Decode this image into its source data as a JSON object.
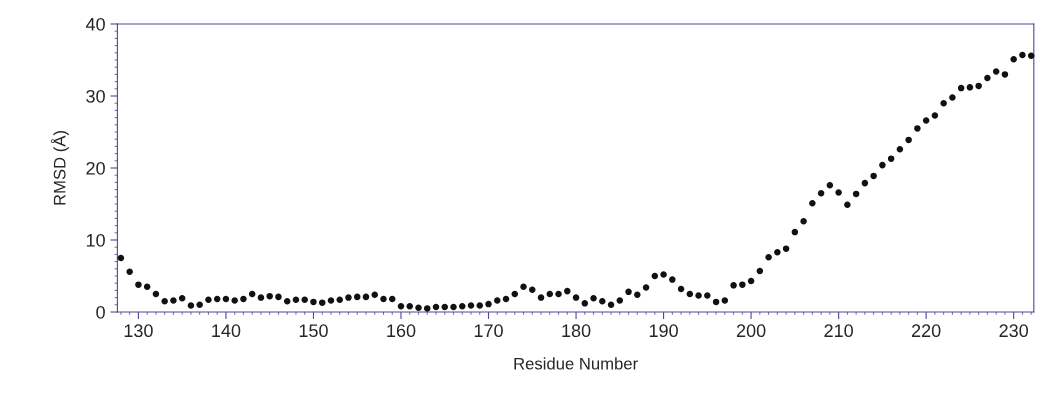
{
  "chart_data": {
    "type": "scatter",
    "xlabel": "Residue Number",
    "ylabel": "RMSD (Å)",
    "x": [
      128,
      129,
      130,
      131,
      132,
      133,
      134,
      135,
      136,
      137,
      138,
      139,
      140,
      141,
      142,
      143,
      144,
      145,
      146,
      147,
      148,
      149,
      150,
      151,
      152,
      153,
      154,
      155,
      156,
      157,
      158,
      159,
      160,
      161,
      162,
      163,
      164,
      165,
      166,
      167,
      168,
      169,
      170,
      171,
      172,
      173,
      174,
      175,
      176,
      177,
      178,
      179,
      180,
      181,
      182,
      183,
      184,
      185,
      186,
      187,
      188,
      189,
      190,
      191,
      192,
      193,
      194,
      195,
      196,
      197,
      198,
      199,
      200,
      201,
      202,
      203,
      204,
      205,
      206,
      207,
      208,
      209,
      210,
      211,
      212,
      213,
      214,
      215,
      216,
      217,
      218,
      219,
      220,
      221,
      222,
      223,
      224,
      225,
      226,
      227,
      228,
      229,
      230,
      231,
      232
    ],
    "series": [
      {
        "color": "#111111",
        "values": [
          7.5,
          5.6,
          3.8,
          3.5,
          2.5,
          1.5,
          1.6,
          1.9,
          0.9,
          1.0,
          1.7,
          1.8,
          1.8,
          1.6,
          1.8,
          2.5,
          2.0,
          2.2,
          2.1,
          1.5,
          1.7,
          1.7,
          1.4,
          1.3,
          1.6,
          1.7,
          2.0,
          2.1,
          2.1,
          2.4,
          1.8,
          1.8,
          0.8,
          0.8,
          0.6,
          0.5,
          0.7,
          0.7,
          0.7,
          0.8,
          0.9,
          0.9,
          1.1,
          1.6,
          1.8,
          2.5,
          3.5,
          3.1,
          2.0,
          2.5,
          2.5,
          2.9,
          2.0,
          1.2,
          1.9,
          1.5,
          1.0,
          1.6,
          2.8,
          2.4,
          3.4,
          5.0,
          5.2,
          4.5,
          3.2,
          2.5,
          2.3,
          2.3,
          1.4,
          1.6,
          3.7,
          3.8,
          4.3,
          5.7,
          7.6,
          8.3,
          8.8,
          11.1,
          12.6,
          15.1,
          16.5,
          17.6,
          16.6,
          14.9,
          16.4,
          17.9,
          18.9,
          20.4,
          21.3,
          22.6,
          23.9,
          25.5,
          26.6,
          27.3,
          29.0,
          29.8,
          31.1,
          31.2,
          31.4,
          32.5,
          33.4,
          33.0,
          35.1,
          35.7,
          35.6
        ]
      }
    ],
    "xlim": [
      127.6,
      232.3
    ],
    "xticks": [
      130,
      140,
      150,
      160,
      170,
      180,
      190,
      200,
      210,
      220,
      230
    ],
    "ylim": [
      0,
      40
    ],
    "yticks": [
      0,
      10,
      20,
      30,
      40
    ],
    "marker": "circle",
    "grid": false,
    "legend": false
  }
}
